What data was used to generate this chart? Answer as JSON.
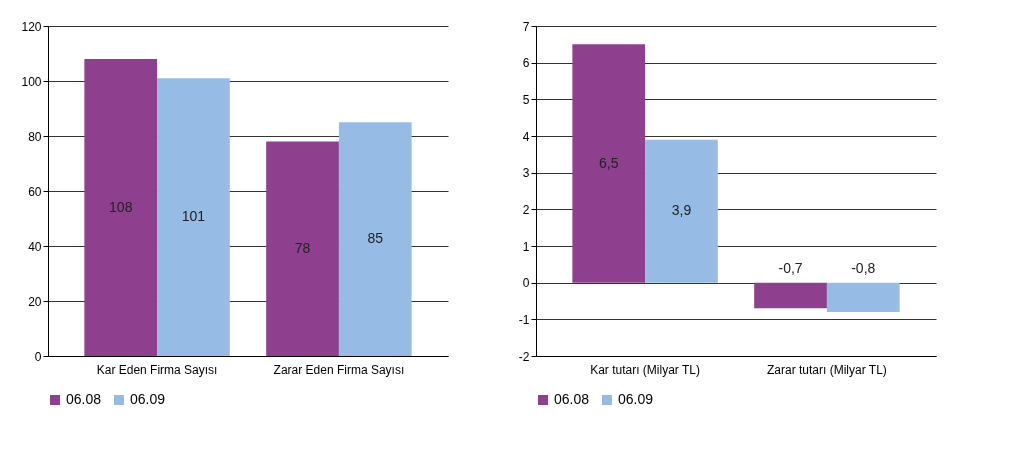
{
  "chart_data": [
    {
      "type": "bar",
      "categories": [
        "Kar Eden Firma Sayısı",
        "Zarar Eden Firma Sayısı"
      ],
      "series": [
        {
          "name": "06.08",
          "color": "#8e3f8e",
          "values": [
            108,
            78
          ]
        },
        {
          "name": "06.09",
          "color": "#96bce6",
          "values": [
            101,
            85
          ]
        }
      ],
      "ylim": [
        0,
        120
      ],
      "yticks": [
        0,
        20,
        40,
        60,
        80,
        100,
        120
      ],
      "grid": "y",
      "legend": "bottom",
      "data_labels": true
    },
    {
      "type": "bar",
      "categories": [
        "Kar tutarı (Milyar TL)",
        "Zarar tutarı (Milyar TL)"
      ],
      "series": [
        {
          "name": "06.08",
          "color": "#8e3f8e",
          "values": [
            6.5,
            -0.7
          ],
          "value_labels": [
            "6,5",
            "-0,7"
          ]
        },
        {
          "name": "06.09",
          "color": "#96bce6",
          "values": [
            3.9,
            -0.8
          ],
          "value_labels": [
            "3,9",
            "-0,8"
          ]
        }
      ],
      "ylim": [
        -2,
        7
      ],
      "yticks": [
        -2,
        -1,
        0,
        1,
        2,
        3,
        4,
        5,
        6,
        7
      ],
      "grid": "y",
      "legend": "bottom"
    }
  ]
}
